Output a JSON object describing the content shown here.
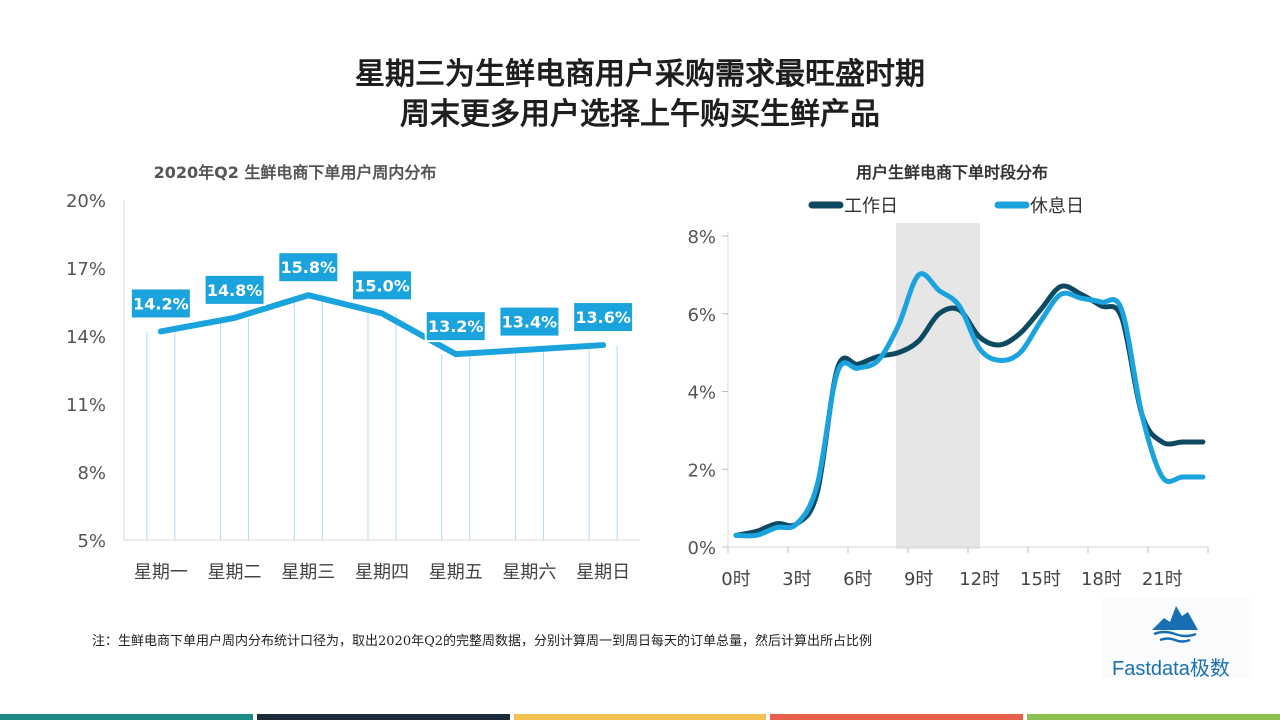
{
  "title": {
    "line1": "星期三为生鲜电商用户采购需求最旺盛时期",
    "line2": "周末更多用户选择上午购买生鲜产品"
  },
  "note": "注：生鲜电商下单用户周内分布统计口径为，取出2020年Q2的完整周数据，分别计算周一到周日每天的订单总量，然后计算出所占比例",
  "logo": {
    "text": "Fastdata极数",
    "icon": "mountain-logo-icon"
  },
  "colors": {
    "accent": "#1aa3dc",
    "dark": "#0d4a62",
    "shade": "#e6e6e6",
    "footer": [
      "#1b8a84",
      "#1c2b39",
      "#f2c14e",
      "#e8604c",
      "#8cc152"
    ]
  },
  "chart_data": [
    {
      "type": "line",
      "title": "2020年Q2 生鲜电商下单用户周内分布",
      "categories": [
        "星期一",
        "星期二",
        "星期三",
        "星期四",
        "星期五",
        "星期六",
        "星期日"
      ],
      "values": [
        14.2,
        14.8,
        15.8,
        15.0,
        13.2,
        13.4,
        13.6
      ],
      "data_labels": [
        "14.2%",
        "14.8%",
        "15.8%",
        "15.0%",
        "13.2%",
        "13.4%",
        "13.6%"
      ],
      "ylim": [
        5,
        20
      ],
      "yticks": [
        5,
        8,
        11,
        14,
        17,
        20
      ],
      "ytick_labels": [
        "5%",
        "8%",
        "11%",
        "14%",
        "17%",
        "20%"
      ],
      "xlabel": "",
      "ylabel": "",
      "grid": false
    },
    {
      "type": "line",
      "title": "用户生鲜电商下单时段分布",
      "x": [
        0,
        1,
        2,
        3,
        4,
        5,
        6,
        7,
        8,
        9,
        10,
        11,
        12,
        13,
        14,
        15,
        16,
        17,
        18,
        19,
        20,
        21,
        22,
        23
      ],
      "xticks": [
        0,
        3,
        6,
        9,
        12,
        15,
        18,
        21
      ],
      "xtick_labels": [
        "0时",
        "3时",
        "6时",
        "9时",
        "12时",
        "15时",
        "18时",
        "21时"
      ],
      "ylim": [
        0,
        8
      ],
      "yticks": [
        0,
        2,
        4,
        6,
        8
      ],
      "ytick_labels": [
        "0%",
        "2%",
        "4%",
        "6%",
        "8%"
      ],
      "highlight_range": [
        8,
        12
      ],
      "legend_position": "top",
      "series": [
        {
          "name": "工作日",
          "color": "#0d4a62",
          "values": [
            0.3,
            0.4,
            0.6,
            0.6,
            1.4,
            4.6,
            4.7,
            4.9,
            5.0,
            5.3,
            6.0,
            6.1,
            5.4,
            5.2,
            5.5,
            6.1,
            6.7,
            6.5,
            6.2,
            5.9,
            3.4,
            2.7,
            2.7,
            2.7
          ]
        },
        {
          "name": "休息日",
          "color": "#1aa3dc",
          "values": [
            0.3,
            0.3,
            0.5,
            0.6,
            1.6,
            4.5,
            4.6,
            4.8,
            5.7,
            7.0,
            6.6,
            6.2,
            5.1,
            4.8,
            5.0,
            5.8,
            6.5,
            6.4,
            6.3,
            6.1,
            3.4,
            1.8,
            1.8,
            1.8
          ]
        }
      ]
    }
  ]
}
